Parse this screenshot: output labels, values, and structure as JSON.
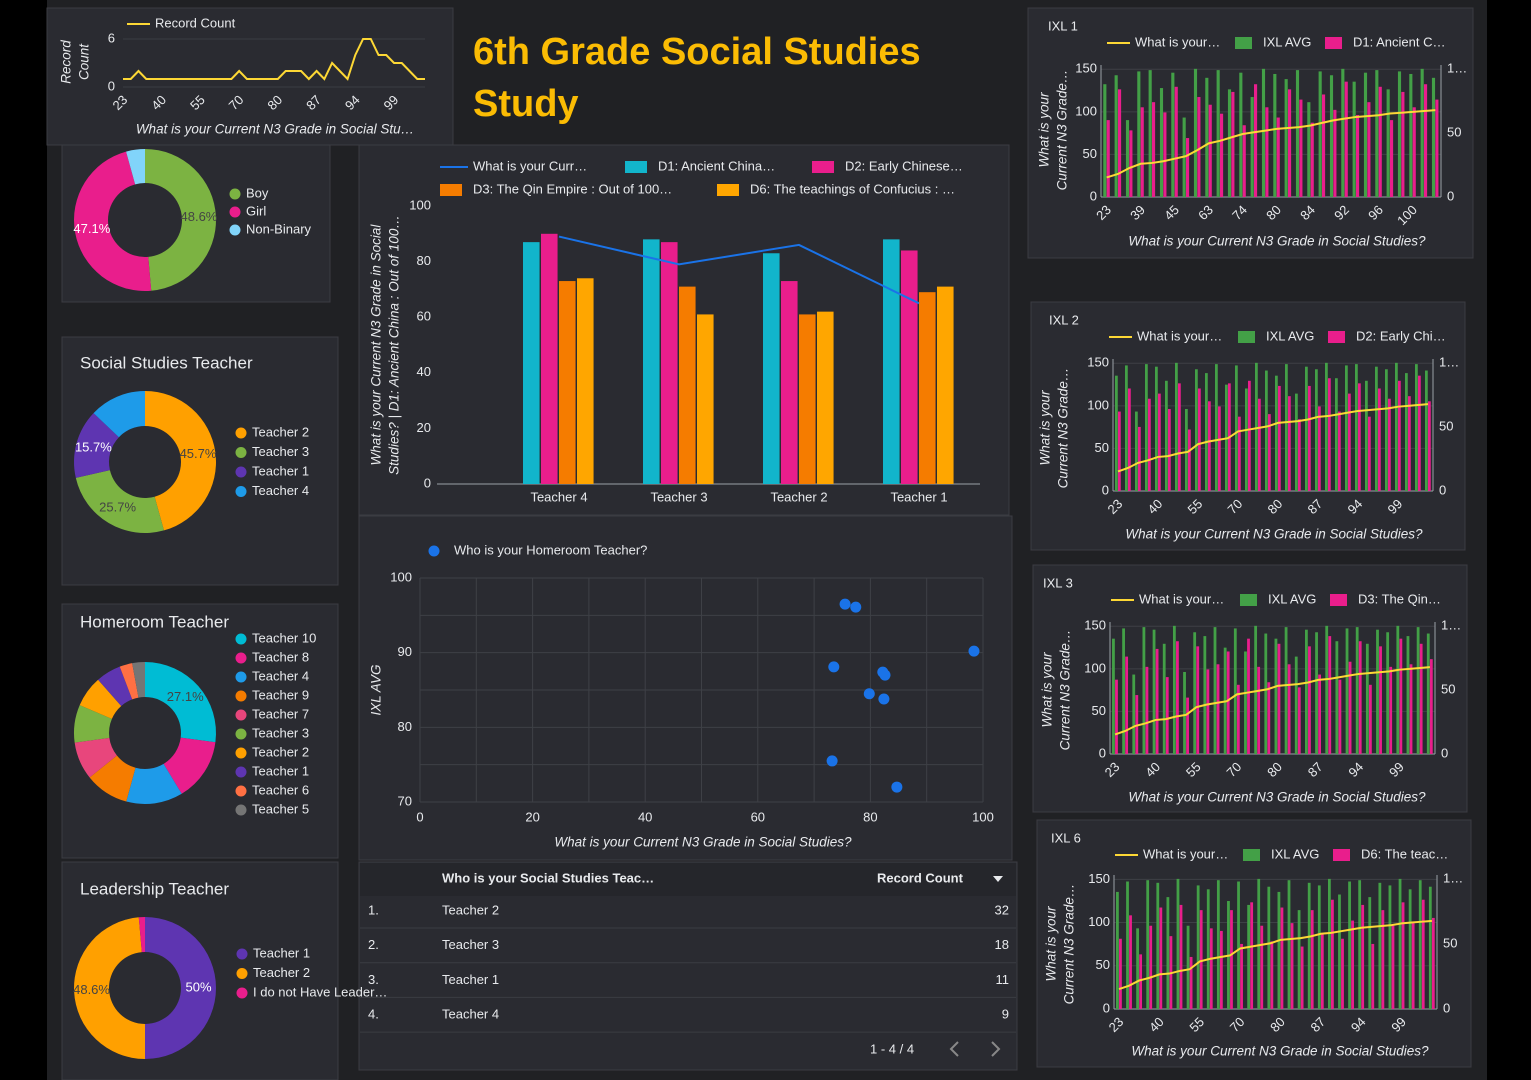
{
  "header": {
    "title": "6th Grade Social Studies Study"
  },
  "chart_data": [
    {
      "type": "line",
      "categories": [
        23,
        null,
        null,
        null,
        null,
        40,
        null,
        null,
        null,
        null,
        55,
        null,
        null,
        null,
        null,
        70,
        null,
        null,
        null,
        null,
        80,
        null,
        null,
        null,
        null,
        87,
        null,
        null,
        null,
        null,
        94,
        null,
        null,
        null,
        null,
        99,
        null,
        null,
        null,
        null
      ],
      "series": [
        {
          "name": "Record Count",
          "color": "#fdd835",
          "values": [
            1,
            1,
            2,
            1,
            1,
            1,
            1,
            1,
            1,
            1,
            1,
            1,
            1,
            1,
            1,
            2,
            1,
            1,
            1,
            1,
            1,
            2,
            2,
            2,
            1,
            2,
            1,
            3,
            2,
            1,
            4,
            6,
            6,
            4,
            4,
            3,
            3,
            2,
            1,
            1
          ]
        }
      ],
      "ylabel": [
        "Record",
        "Count"
      ],
      "xlabel": "What is your Current N3 Grade in Social Stu…",
      "ylim": [
        0,
        6
      ],
      "yticks": [
        0,
        6
      ]
    },
    {
      "type": "donut",
      "categories": [
        "Boy",
        "Girl",
        "Non-Binary"
      ],
      "values": [
        48.6,
        47.1,
        4.3
      ],
      "value_labels": [
        "48.6%",
        "47.1%",
        null
      ],
      "colors": [
        "#7cb342",
        "#e91e8c",
        "#81d4fa"
      ]
    },
    {
      "type": "donut",
      "title": "Social Studies Teacher",
      "categories": [
        "Teacher 2",
        "Teacher 3",
        "Teacher 1",
        "Teacher 4"
      ],
      "values": [
        45.7,
        25.7,
        15.7,
        12.9
      ],
      "value_labels": [
        "45.7%",
        "25.7%",
        "15.7%",
        null
      ],
      "colors": [
        "#ffa000",
        "#7cb342",
        "#5e35b1",
        "#1e9be9"
      ]
    },
    {
      "type": "donut",
      "title": "Homeroom Teacher",
      "categories": [
        "Teacher 10",
        "Teacher 8",
        "Teacher 4",
        "Teacher 9",
        "Teacher 7",
        "Teacher 3",
        "Teacher 2",
        "Teacher 1",
        "Teacher 6",
        "Teacher 5"
      ],
      "values": [
        27.1,
        14.3,
        12.9,
        10,
        8.6,
        8.6,
        7.1,
        5.7,
        2.9,
        2.9
      ],
      "value_labels": [
        "27.1%",
        null,
        null,
        null,
        null,
        null,
        null,
        null,
        null,
        null
      ],
      "colors": [
        "#00bcd4",
        "#e91e8c",
        "#1e9be9",
        "#f57c00",
        "#e8467c",
        "#7cb342",
        "#ffa000",
        "#5e35b1",
        "#ff7043",
        "#757575"
      ]
    },
    {
      "type": "donut",
      "title": "Leadership Teacher",
      "categories": [
        "Teacher 1",
        "Teacher 2",
        "I do not Have Leader…"
      ],
      "values": [
        50,
        48.6,
        1.4
      ],
      "value_labels": [
        "50%",
        "48.6%",
        null
      ],
      "colors": [
        "#5e35b1",
        "#ffa000",
        "#e91e8c"
      ]
    },
    {
      "type": "bar_line",
      "categories": [
        "Teacher 4",
        "Teacher 3",
        "Teacher 2",
        "Teacher 1"
      ],
      "series": [
        {
          "name": "What is your Curr…",
          "type": "line",
          "color": "#1a73e8",
          "values": [
            89,
            79,
            86,
            65
          ]
        },
        {
          "name": "D1: Ancient China…",
          "type": "bar",
          "color": "#12b5cb",
          "values": [
            87,
            88,
            83,
            88
          ]
        },
        {
          "name": "D2: Early Chinese…",
          "type": "bar",
          "color": "#e91e8c",
          "values": [
            90,
            87,
            73,
            84
          ]
        },
        {
          "name": "D3: The Qin Empire : Out of 100…",
          "type": "bar",
          "color": "#f57c00",
          "values": [
            73,
            71,
            61,
            69
          ]
        },
        {
          "name": "D6: The teachings of Confucius : …",
          "type": "bar",
          "color": "#ffa600",
          "values": [
            74,
            61,
            62,
            71
          ]
        }
      ],
      "ylabel": [
        "What is your Current N3 Grade in Social",
        "Studies? | D1: Ancient China : Out of 100…"
      ],
      "ylim": [
        0,
        100
      ],
      "yticks": [
        0,
        20,
        40,
        60,
        80,
        100
      ]
    },
    {
      "type": "scatter",
      "series": [
        {
          "name": "Who is your Homeroom Teacher?",
          "color": "#1a73e8",
          "x": [
            75.5,
            77.4,
            73.5,
            98.4,
            82.2,
            82.6,
            79.8,
            82.4,
            73.2,
            84.7
          ],
          "values": [
            96.5,
            96.1,
            88.1,
            90.2,
            87.4,
            87.0,
            84.5,
            83.8,
            75.5,
            72.0
          ]
        }
      ],
      "xlabel": "What is your Current N3 Grade in Social Studies?",
      "ylabel": "IXL AVG",
      "xlim": [
        0,
        100
      ],
      "ylim": [
        70,
        100
      ],
      "xticks": [
        0,
        20,
        40,
        60,
        80,
        100
      ],
      "yticks": [
        70,
        80,
        90,
        100
      ],
      "xgrid": [
        0,
        10,
        20,
        30,
        40,
        50,
        60,
        70,
        80,
        90,
        100
      ],
      "ygrid": [
        70,
        75,
        80,
        85,
        90,
        95,
        100
      ]
    },
    {
      "type": "bar_line",
      "title": "IXL 1",
      "categories": [
        23,
        null,
        null,
        39,
        null,
        null,
        45,
        null,
        null,
        63,
        null,
        null,
        74,
        null,
        null,
        80,
        null,
        null,
        84,
        null,
        null,
        92,
        null,
        null,
        96,
        null,
        null,
        100,
        null,
        null
      ],
      "series": [
        {
          "name": "What is your…",
          "type": "line",
          "color": "#fdd835",
          "values": [
            23,
            27,
            34,
            39,
            40,
            42,
            45,
            48,
            55,
            63,
            66,
            70,
            74,
            76,
            78,
            80,
            81,
            82,
            84,
            87,
            90,
            92,
            94,
            95,
            96,
            98,
            99,
            100,
            101,
            102
          ]
        },
        {
          "name": "IXL AVG",
          "type": "bar",
          "axis": "y2",
          "color": "#43a047",
          "values": [
            88,
            95,
            60,
            98,
            99,
            85,
            97,
            62,
            100,
            93,
            99,
            84,
            97,
            78,
            100,
            96,
            92,
            99,
            74,
            98,
            95,
            100,
            90,
            97,
            99,
            84,
            98,
            96,
            100,
            93
          ]
        },
        {
          "name": "D1: Ancient C…",
          "type": "bar",
          "axis": "y2",
          "color": "#e91e8c",
          "values": [
            60,
            84,
            52,
            70,
            74,
            66,
            86,
            46,
            78,
            72,
            65,
            82,
            56,
            88,
            70,
            62,
            84,
            76,
            58,
            80,
            68,
            90,
            64,
            74,
            86,
            60,
            82,
            70,
            88,
            76
          ]
        }
      ],
      "ylabel": [
        "What is your",
        "Current N3 Grade…"
      ],
      "xlabel": "What is your Current N3 Grade in Social Studies?",
      "ylim": [
        0,
        155
      ],
      "yticks": [
        0,
        50,
        100,
        150
      ],
      "y2lim": [
        0,
        103
      ],
      "y2ticks": [
        0,
        50,
        {
          "value": 100,
          "label": "1…"
        }
      ],
      "grid": true
    },
    {
      "type": "bar_line",
      "title": "IXL 2",
      "categories": [
        23,
        null,
        null,
        null,
        40,
        null,
        null,
        null,
        55,
        null,
        null,
        null,
        70,
        null,
        null,
        null,
        80,
        null,
        null,
        null,
        87,
        null,
        null,
        null,
        94,
        null,
        null,
        null,
        99,
        null,
        null,
        null
      ],
      "series": [
        {
          "name": "What is your…",
          "type": "line",
          "color": "#fdd835",
          "values": [
            23,
            27,
            33,
            36,
            40,
            41,
            44,
            46,
            55,
            58,
            60,
            62,
            70,
            72,
            74,
            76,
            80,
            81,
            82,
            84,
            87,
            88,
            90,
            92,
            94,
            95,
            96,
            97,
            99,
            100,
            101,
            102
          ]
        },
        {
          "name": "IXL AVG",
          "type": "bar",
          "axis": "y2",
          "color": "#43a047",
          "values": [
            90,
            98,
            62,
            99,
            97,
            86,
            100,
            64,
            95,
            92,
            99,
            83,
            98,
            80,
            100,
            94,
            90,
            99,
            76,
            97,
            95,
            100,
            88,
            98,
            99,
            86,
            97,
            95,
            100,
            92,
            99,
            94
          ]
        },
        {
          "name": "D2: Early Chi…",
          "type": "bar",
          "axis": "y2",
          "color": "#e91e8c",
          "values": [
            62,
            80,
            50,
            72,
            76,
            64,
            84,
            48,
            80,
            70,
            66,
            84,
            58,
            86,
            72,
            60,
            82,
            74,
            56,
            82,
            66,
            88,
            62,
            76,
            84,
            58,
            80,
            72,
            86,
            74,
            90,
            70
          ]
        }
      ],
      "ylabel": [
        "What is your",
        "Current N3 Grade…"
      ],
      "xlabel": "What is your Current N3 Grade in Social Studies?",
      "ylim": [
        0,
        155
      ],
      "yticks": [
        0,
        50,
        100,
        150
      ],
      "y2lim": [
        0,
        103
      ],
      "y2ticks": [
        0,
        50,
        {
          "value": 100,
          "label": "1…"
        }
      ],
      "grid": true
    },
    {
      "type": "bar_line",
      "title": "IXL 3",
      "categories": [
        23,
        null,
        null,
        null,
        40,
        null,
        null,
        null,
        55,
        null,
        null,
        null,
        70,
        null,
        null,
        null,
        80,
        null,
        null,
        null,
        87,
        null,
        null,
        null,
        94,
        null,
        null,
        null,
        99,
        null,
        null,
        null
      ],
      "series": [
        {
          "name": "What is your…",
          "type": "line",
          "color": "#fdd835",
          "values": [
            23,
            27,
            33,
            36,
            40,
            41,
            44,
            46,
            55,
            58,
            60,
            62,
            70,
            72,
            74,
            76,
            80,
            81,
            82,
            84,
            87,
            88,
            90,
            92,
            94,
            95,
            96,
            97,
            99,
            100,
            101,
            102
          ]
        },
        {
          "name": "IXL AVG",
          "type": "bar",
          "axis": "y2",
          "color": "#43a047",
          "values": [
            90,
            98,
            62,
            99,
            97,
            86,
            100,
            64,
            95,
            92,
            99,
            83,
            98,
            80,
            100,
            94,
            90,
            99,
            76,
            97,
            95,
            100,
            88,
            98,
            99,
            86,
            97,
            95,
            100,
            92,
            99,
            94
          ]
        },
        {
          "name": "D3: The Qin…",
          "type": "bar",
          "axis": "y2",
          "color": "#e91e8c",
          "values": [
            58,
            76,
            46,
            68,
            82,
            60,
            88,
            44,
            84,
            66,
            70,
            80,
            54,
            90,
            68,
            56,
            86,
            70,
            52,
            84,
            62,
            92,
            58,
            72,
            88,
            54,
            84,
            68,
            90,
            70,
            86,
            74
          ]
        }
      ],
      "ylabel": [
        "What is your",
        "Current N3 Grade…"
      ],
      "xlabel": "What is your Current N3 Grade in Social Studies?",
      "ylim": [
        0,
        155
      ],
      "yticks": [
        0,
        50,
        100,
        150
      ],
      "y2lim": [
        0,
        103
      ],
      "y2ticks": [
        0,
        50,
        {
          "value": 100,
          "label": "1…"
        }
      ],
      "grid": true
    },
    {
      "type": "bar_line",
      "title": "IXL 6",
      "categories": [
        23,
        null,
        null,
        null,
        40,
        null,
        null,
        null,
        55,
        null,
        null,
        null,
        70,
        null,
        null,
        null,
        80,
        null,
        null,
        null,
        87,
        null,
        null,
        null,
        94,
        null,
        null,
        null,
        99,
        null,
        null,
        null
      ],
      "series": [
        {
          "name": "What is your…",
          "type": "line",
          "color": "#fdd835",
          "values": [
            23,
            27,
            33,
            36,
            40,
            41,
            44,
            46,
            55,
            58,
            60,
            62,
            70,
            72,
            74,
            76,
            80,
            81,
            82,
            84,
            87,
            88,
            90,
            92,
            94,
            95,
            96,
            97,
            99,
            100,
            101,
            102
          ]
        },
        {
          "name": "IXL AVG",
          "type": "bar",
          "axis": "y2",
          "color": "#43a047",
          "values": [
            90,
            98,
            62,
            99,
            97,
            86,
            100,
            64,
            95,
            92,
            99,
            83,
            98,
            80,
            100,
            94,
            90,
            99,
            76,
            97,
            95,
            100,
            88,
            98,
            99,
            86,
            97,
            95,
            100,
            92,
            99,
            94
          ]
        },
        {
          "name": "D6: The teac…",
          "type": "bar",
          "axis": "y2",
          "color": "#e91e8c",
          "values": [
            54,
            72,
            42,
            64,
            78,
            56,
            80,
            40,
            76,
            62,
            60,
            76,
            50,
            82,
            64,
            52,
            78,
            66,
            48,
            76,
            58,
            84,
            54,
            68,
            80,
            50,
            76,
            64,
            82,
            66,
            84,
            70
          ]
        }
      ],
      "ylabel": [
        "What is your",
        "Current N3 Grade…"
      ],
      "xlabel": "What is your Current N3 Grade in Social Studies?",
      "ylim": [
        0,
        155
      ],
      "yticks": [
        0,
        50,
        100,
        150
      ],
      "y2lim": [
        0,
        103
      ],
      "y2ticks": [
        0,
        50,
        {
          "value": 100,
          "label": "1…"
        }
      ],
      "grid": true
    }
  ],
  "table": {
    "columns": [
      "Who is your Social Studies Teac…",
      "Record Count"
    ],
    "rows": [
      [
        "1.",
        "Teacher 2",
        32
      ],
      [
        "2.",
        "Teacher 3",
        18
      ],
      [
        "3.",
        "Teacher 1",
        11
      ],
      [
        "4.",
        "Teacher 4",
        9
      ]
    ],
    "pagination": "1 - 4 / 4"
  }
}
